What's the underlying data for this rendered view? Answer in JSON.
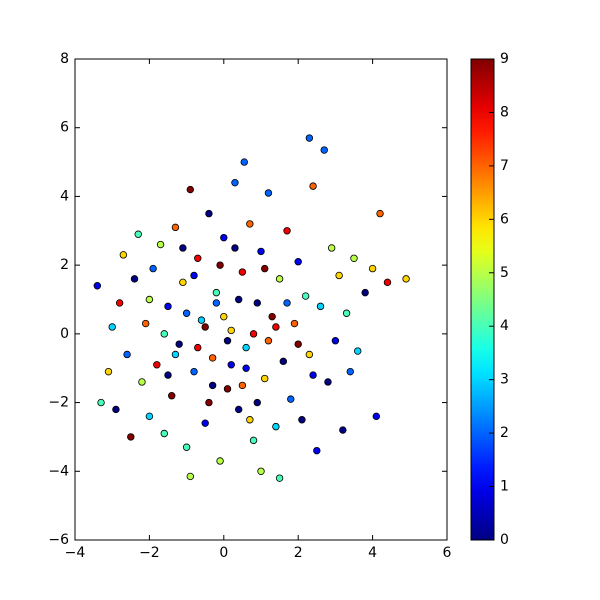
{
  "chart_data": {
    "type": "scatter",
    "x": [
      -3.4,
      -3.3,
      -3.1,
      -3.0,
      -2.9,
      -2.8,
      -2.7,
      -2.6,
      -2.5,
      -2.4,
      -2.3,
      -2.2,
      -2.1,
      -2.0,
      -1.9,
      -1.8,
      -1.7,
      -1.6,
      -1.5,
      -1.4,
      -1.3,
      -1.2,
      -1.1,
      -1.0,
      -0.9,
      -0.9,
      -0.8,
      -0.7,
      -0.6,
      -0.5,
      -0.4,
      -0.3,
      -0.2,
      -0.1,
      0.0,
      0.1,
      0.2,
      0.3,
      0.4,
      0.5,
      0.55,
      0.6,
      0.7,
      0.8,
      0.9,
      1.0,
      1.0,
      1.1,
      1.2,
      1.3,
      1.4,
      1.5,
      1.5,
      1.6,
      1.7,
      1.8,
      1.9,
      2.0,
      2.1,
      2.2,
      2.3,
      2.3,
      2.4,
      2.5,
      2.6,
      2.7,
      2.8,
      2.9,
      3.0,
      3.1,
      3.2,
      3.3,
      3.4,
      3.5,
      3.6,
      3.8,
      4.0,
      4.1,
      4.2,
      4.4,
      4.9,
      -0.5,
      0.2,
      -1.0,
      0.8,
      -0.3,
      1.2,
      -1.6,
      0.4,
      -0.1,
      0.6,
      -0.7,
      1.7,
      -1.3,
      0.0,
      0.9,
      -0.4,
      0.3,
      -2.0,
      2.4,
      1.1,
      -0.8,
      0.5,
      -1.5,
      1.4,
      -0.2,
      0.7,
      -1.1,
      2.0,
      0.1
    ],
    "y": [
      1.4,
      -2.0,
      -1.1,
      0.2,
      -2.2,
      0.9,
      2.3,
      -0.6,
      -3.0,
      1.6,
      2.9,
      -1.4,
      0.3,
      -2.4,
      1.9,
      -0.9,
      2.6,
      -2.9,
      0.8,
      -1.8,
      3.1,
      -0.3,
      1.5,
      -3.3,
      4.2,
      -4.15,
      -1.1,
      2.2,
      0.4,
      -2.6,
      3.5,
      -0.7,
      1.2,
      -3.7,
      2.8,
      -1.6,
      0.1,
      4.4,
      -2.2,
      1.8,
      5.0,
      -0.4,
      3.2,
      -3.1,
      0.9,
      -4.0,
      2.4,
      -1.3,
      4.1,
      0.5,
      -2.7,
      -4.2,
      1.6,
      -0.8,
      3.0,
      -1.9,
      0.3,
      2.1,
      -2.5,
      1.1,
      5.7,
      -0.6,
      4.3,
      -3.4,
      0.8,
      5.35,
      -1.4,
      2.5,
      -0.2,
      1.7,
      -2.8,
      0.6,
      -1.1,
      2.2,
      -0.5,
      1.2,
      1.9,
      -2.4,
      3.5,
      1.5,
      1.6,
      0.2,
      -0.9,
      0.6,
      0.0,
      -1.5,
      -0.2,
      0.0,
      1.0,
      2.0,
      -1.0,
      -0.4,
      0.9,
      -0.6,
      0.5,
      -2.0,
      -2.0,
      2.5,
      1.0,
      -1.2,
      1.9,
      1.7,
      -1.5,
      -1.2,
      0.2,
      0.9,
      -2.5,
      2.5,
      -0.3,
      -0.2
    ],
    "c": [
      1,
      4,
      6,
      3,
      0,
      8,
      6,
      2,
      9,
      0,
      4,
      5,
      7,
      3,
      2,
      8,
      5,
      4,
      1,
      9,
      7,
      0,
      6,
      4,
      9,
      5,
      2,
      8,
      3,
      1,
      0,
      7,
      4,
      5,
      1,
      9,
      6,
      2,
      0,
      8,
      2,
      3,
      7,
      4,
      0,
      5,
      1,
      6,
      2,
      9,
      3,
      4,
      5,
      0,
      8,
      2,
      7,
      1,
      0,
      4,
      2,
      6,
      7,
      1,
      3,
      2,
      0,
      5,
      1,
      6,
      0,
      4,
      2,
      5,
      3,
      0,
      6,
      1,
      7,
      8,
      6,
      9,
      1,
      2,
      8,
      0,
      7,
      4,
      0,
      9,
      1,
      8,
      2,
      3,
      6,
      0,
      9,
      0,
      5,
      1,
      9,
      1,
      7,
      0,
      8,
      2,
      6,
      0,
      9,
      0
    ],
    "xlim": [
      -4,
      6
    ],
    "xticks": [
      {
        "value": -4,
        "label": "−4"
      },
      {
        "value": -2,
        "label": "−2"
      },
      0,
      2,
      4,
      6
    ],
    "ylim": [
      -6,
      8
    ],
    "yticks": [
      {
        "value": -6,
        "label": "−6"
      },
      {
        "value": -4,
        "label": "−4"
      },
      {
        "value": -2,
        "label": "−2"
      },
      0,
      2,
      4,
      6,
      8
    ],
    "colormap": "jet",
    "clim": [
      0,
      9
    ],
    "cticks": [
      0,
      1,
      2,
      3,
      4,
      5,
      6,
      7,
      8,
      9
    ]
  }
}
